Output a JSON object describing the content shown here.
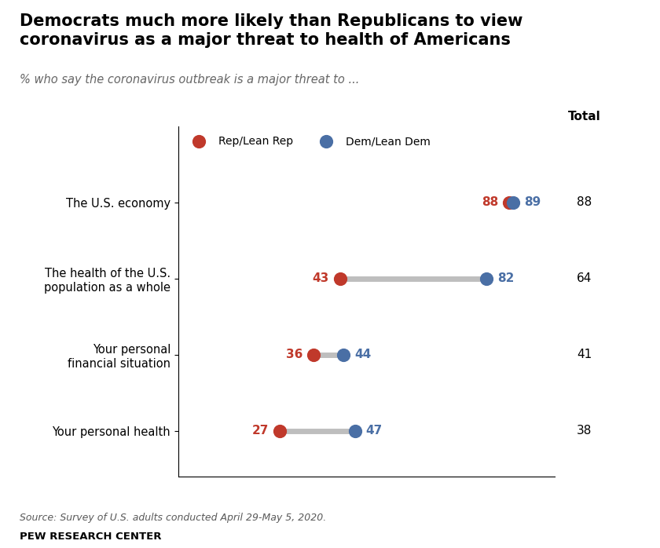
{
  "chart_data": {
    "type": "dumbbell",
    "title": "Democrats much more likely than Republicans to view\ncoronavirus as a major threat to health of Americans",
    "subtitle": "% who say the coronavirus outbreak is a major threat to ...",
    "categories": [
      "The U.S. economy",
      "The health of the U.S.\npopulation as a whole",
      "Your personal\nfinancial situation",
      "Your personal health"
    ],
    "series": [
      {
        "name": "Rep/Lean Rep",
        "color": "#c0392b",
        "values": [
          88,
          43,
          36,
          27
        ]
      },
      {
        "name": "Dem/Lean Dem",
        "color": "#4a6fa5",
        "values": [
          89,
          82,
          44,
          47
        ]
      }
    ],
    "totals": {
      "name": "Total",
      "values": [
        88,
        64,
        41,
        38
      ]
    },
    "xlim": [
      0,
      100
    ],
    "tick_labels": "y",
    "data_labels": true,
    "legend": "upper left",
    "source": "Source: Survey of U.S. adults conducted April 29-May 5, 2020.",
    "footer": "PEW RESEARCH CENTER"
  }
}
